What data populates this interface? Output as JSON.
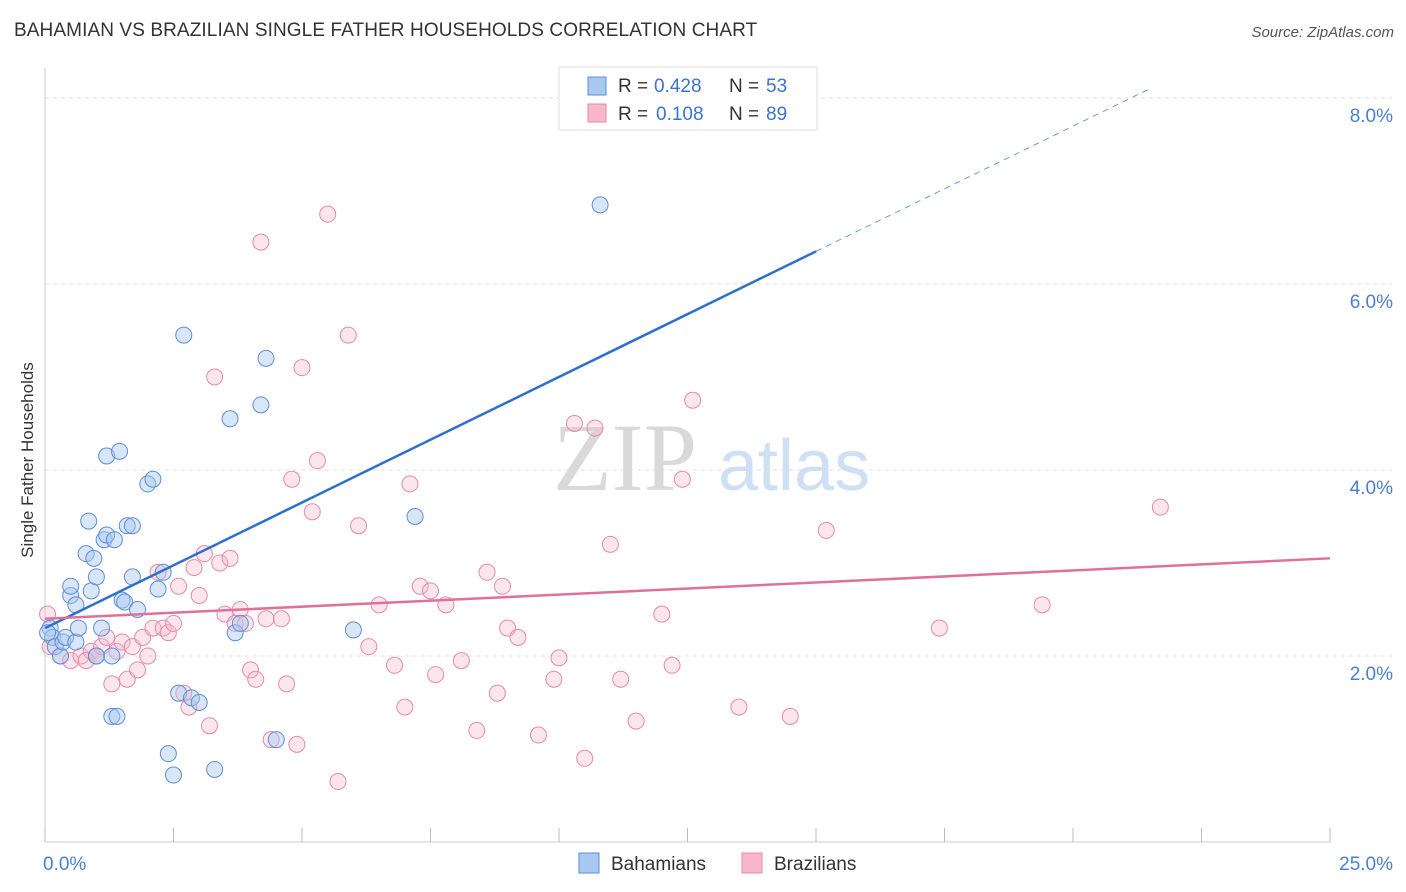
{
  "header": {
    "title": "BAHAMIAN VS BRAZILIAN SINGLE FATHER HOUSEHOLDS CORRELATION CHART",
    "source": "Source: ZipAtlas.com"
  },
  "watermark": {
    "zip": "ZIP",
    "atlas": "atlas"
  },
  "colors": {
    "bahamians_fill": "#a8c8f0",
    "bahamians_stroke": "#5b8fd6",
    "bahamians_line": "#2f6fcc",
    "brazilians_fill": "#f7b8cb",
    "brazilians_stroke": "#e68aa8",
    "brazilians_line": "#e0709a",
    "tick_label": "#4a7fd0",
    "grid": "#dddddd"
  },
  "chart_data": {
    "type": "scatter",
    "title": "BAHAMIAN VS BRAZILIAN SINGLE FATHER HOUSEHOLDS CORRELATION CHART",
    "xlabel": "",
    "ylabel": "Single Father Households",
    "xlim": [
      0,
      25
    ],
    "ylim": [
      0,
      8.3
    ],
    "x_tick_labels": [
      "0.0%",
      "25.0%"
    ],
    "y_ticks": [
      2,
      4,
      6,
      8
    ],
    "y_tick_labels": [
      "2.0%",
      "4.0%",
      "6.0%",
      "8.0%"
    ],
    "grid": true,
    "legend_position": "top-center",
    "legend_stats": [
      {
        "r_label": "R =",
        "r_value": "0.428",
        "n_label": "N =",
        "n_value": "53"
      },
      {
        "r_label": "R =",
        "r_value": "0.108",
        "n_label": "N =",
        "n_value": "89"
      }
    ],
    "bottom_legend": [
      "Bahamians",
      "Brazilians"
    ],
    "series": [
      {
        "name": "Bahamians",
        "trend": {
          "x0": 0,
          "y0": 2.3,
          "x1": 15,
          "y1": 6.35,
          "dash_to_x": 21.5,
          "dash_to_y": 8.1
        },
        "points": [
          [
            0.1,
            2.3
          ],
          [
            0.15,
            2.2
          ],
          [
            0.2,
            2.1
          ],
          [
            0.3,
            2.0
          ],
          [
            0.35,
            2.15
          ],
          [
            0.4,
            2.2
          ],
          [
            0.5,
            2.65
          ],
          [
            0.5,
            2.75
          ],
          [
            0.6,
            2.15
          ],
          [
            0.6,
            2.55
          ],
          [
            0.65,
            2.3
          ],
          [
            0.8,
            3.1
          ],
          [
            0.85,
            3.45
          ],
          [
            0.9,
            2.7
          ],
          [
            0.95,
            3.05
          ],
          [
            1.0,
            2.85
          ],
          [
            1.0,
            2.0
          ],
          [
            1.1,
            2.3
          ],
          [
            1.15,
            3.25
          ],
          [
            1.2,
            3.3
          ],
          [
            1.2,
            4.15
          ],
          [
            1.3,
            2.0
          ],
          [
            1.3,
            1.35
          ],
          [
            1.35,
            3.25
          ],
          [
            1.4,
            1.35
          ],
          [
            1.45,
            4.2
          ],
          [
            1.5,
            2.6
          ],
          [
            1.55,
            2.58
          ],
          [
            1.6,
            3.4
          ],
          [
            1.7,
            2.85
          ],
          [
            1.7,
            3.4
          ],
          [
            1.8,
            2.5
          ],
          [
            2.0,
            3.85
          ],
          [
            2.1,
            3.9
          ],
          [
            2.2,
            2.72
          ],
          [
            2.3,
            2.9
          ],
          [
            2.4,
            0.95
          ],
          [
            2.5,
            0.72
          ],
          [
            2.6,
            1.6
          ],
          [
            2.7,
            5.45
          ],
          [
            2.85,
            1.55
          ],
          [
            3.0,
            1.5
          ],
          [
            3.3,
            0.78
          ],
          [
            3.6,
            4.55
          ],
          [
            3.7,
            2.25
          ],
          [
            3.8,
            2.35
          ],
          [
            4.2,
            4.7
          ],
          [
            4.3,
            5.2
          ],
          [
            4.5,
            1.1
          ],
          [
            6.0,
            2.28
          ],
          [
            7.2,
            3.5
          ],
          [
            10.8,
            6.85
          ],
          [
            0.05,
            2.25
          ]
        ]
      },
      {
        "name": "Brazilians",
        "trend": {
          "x0": 0,
          "y0": 2.4,
          "x1": 25,
          "y1": 3.05
        },
        "points": [
          [
            0.05,
            2.45
          ],
          [
            0.1,
            2.1
          ],
          [
            0.3,
            2.0
          ],
          [
            0.5,
            1.95
          ],
          [
            0.7,
            2.0
          ],
          [
            0.9,
            2.05
          ],
          [
            1.0,
            2.0
          ],
          [
            1.1,
            2.1
          ],
          [
            1.2,
            2.2
          ],
          [
            1.3,
            1.7
          ],
          [
            1.4,
            2.05
          ],
          [
            1.5,
            2.15
          ],
          [
            1.6,
            1.75
          ],
          [
            1.7,
            2.1
          ],
          [
            1.8,
            1.85
          ],
          [
            1.9,
            2.2
          ],
          [
            2.0,
            2.0
          ],
          [
            2.1,
            2.3
          ],
          [
            2.2,
            2.9
          ],
          [
            2.3,
            2.3
          ],
          [
            2.4,
            2.25
          ],
          [
            2.5,
            2.35
          ],
          [
            2.6,
            2.75
          ],
          [
            2.7,
            1.6
          ],
          [
            2.8,
            1.45
          ],
          [
            2.9,
            2.95
          ],
          [
            3.0,
            2.65
          ],
          [
            3.1,
            3.1
          ],
          [
            3.2,
            1.25
          ],
          [
            3.3,
            5.0
          ],
          [
            3.4,
            3.0
          ],
          [
            3.5,
            2.45
          ],
          [
            3.6,
            3.05
          ],
          [
            3.7,
            2.35
          ],
          [
            3.8,
            2.5
          ],
          [
            3.9,
            2.35
          ],
          [
            4.0,
            1.85
          ],
          [
            4.1,
            1.75
          ],
          [
            4.2,
            6.45
          ],
          [
            4.3,
            2.4
          ],
          [
            4.4,
            1.1
          ],
          [
            4.6,
            2.4
          ],
          [
            4.7,
            1.7
          ],
          [
            4.8,
            3.9
          ],
          [
            4.9,
            1.05
          ],
          [
            5.0,
            5.1
          ],
          [
            5.2,
            3.55
          ],
          [
            5.3,
            4.1
          ],
          [
            5.5,
            6.75
          ],
          [
            5.7,
            0.65
          ],
          [
            5.9,
            5.45
          ],
          [
            6.1,
            3.4
          ],
          [
            6.3,
            2.1
          ],
          [
            6.5,
            2.55
          ],
          [
            6.8,
            1.9
          ],
          [
            7.0,
            1.45
          ],
          [
            7.1,
            3.85
          ],
          [
            7.3,
            2.75
          ],
          [
            7.5,
            2.7
          ],
          [
            7.6,
            1.8
          ],
          [
            7.8,
            2.55
          ],
          [
            8.1,
            1.95
          ],
          [
            8.4,
            1.2
          ],
          [
            8.6,
            2.9
          ],
          [
            8.8,
            1.6
          ],
          [
            8.9,
            2.75
          ],
          [
            9.0,
            2.3
          ],
          [
            9.2,
            2.2
          ],
          [
            9.6,
            1.15
          ],
          [
            9.9,
            1.75
          ],
          [
            10.0,
            1.98
          ],
          [
            10.3,
            4.5
          ],
          [
            10.5,
            0.9
          ],
          [
            10.7,
            4.45
          ],
          [
            11.0,
            3.2
          ],
          [
            11.2,
            1.75
          ],
          [
            11.5,
            1.3
          ],
          [
            12.0,
            2.45
          ],
          [
            12.2,
            1.9
          ],
          [
            12.4,
            3.9
          ],
          [
            12.6,
            4.75
          ],
          [
            13.5,
            1.45
          ],
          [
            14.5,
            1.35
          ],
          [
            15.2,
            3.35
          ],
          [
            17.4,
            2.3
          ],
          [
            19.4,
            2.55
          ],
          [
            21.7,
            3.6
          ],
          [
            0.8,
            1.95
          ],
          [
            1.0,
            2.0
          ]
        ]
      }
    ]
  }
}
